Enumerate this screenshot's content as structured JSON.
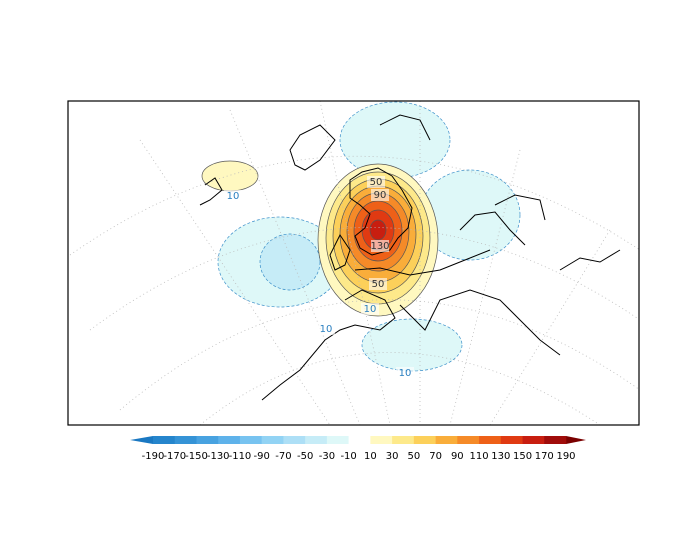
{
  "colorbar": {
    "ticks": [
      -190,
      -170,
      -150,
      -130,
      -110,
      -90,
      -70,
      -50,
      -30,
      -10,
      10,
      30,
      50,
      70,
      90,
      110,
      130,
      150,
      170,
      190
    ],
    "colors": [
      "#1a78c2",
      "#2585cc",
      "#3593d6",
      "#48a2e0",
      "#5eb2ea",
      "#77c3f0",
      "#92d3f4",
      "#addff6",
      "#c6ecf7",
      "#def8f8",
      "#ffffff",
      "#fff8c0",
      "#fde98a",
      "#fcd05a",
      "#f9ad3a",
      "#f58a28",
      "#ee6018",
      "#e03a12",
      "#c81e10",
      "#a00c0a",
      "#7a0000"
    ]
  },
  "contour_labels": [
    10,
    50,
    90,
    130,
    50,
    10,
    10,
    10
  ]
}
